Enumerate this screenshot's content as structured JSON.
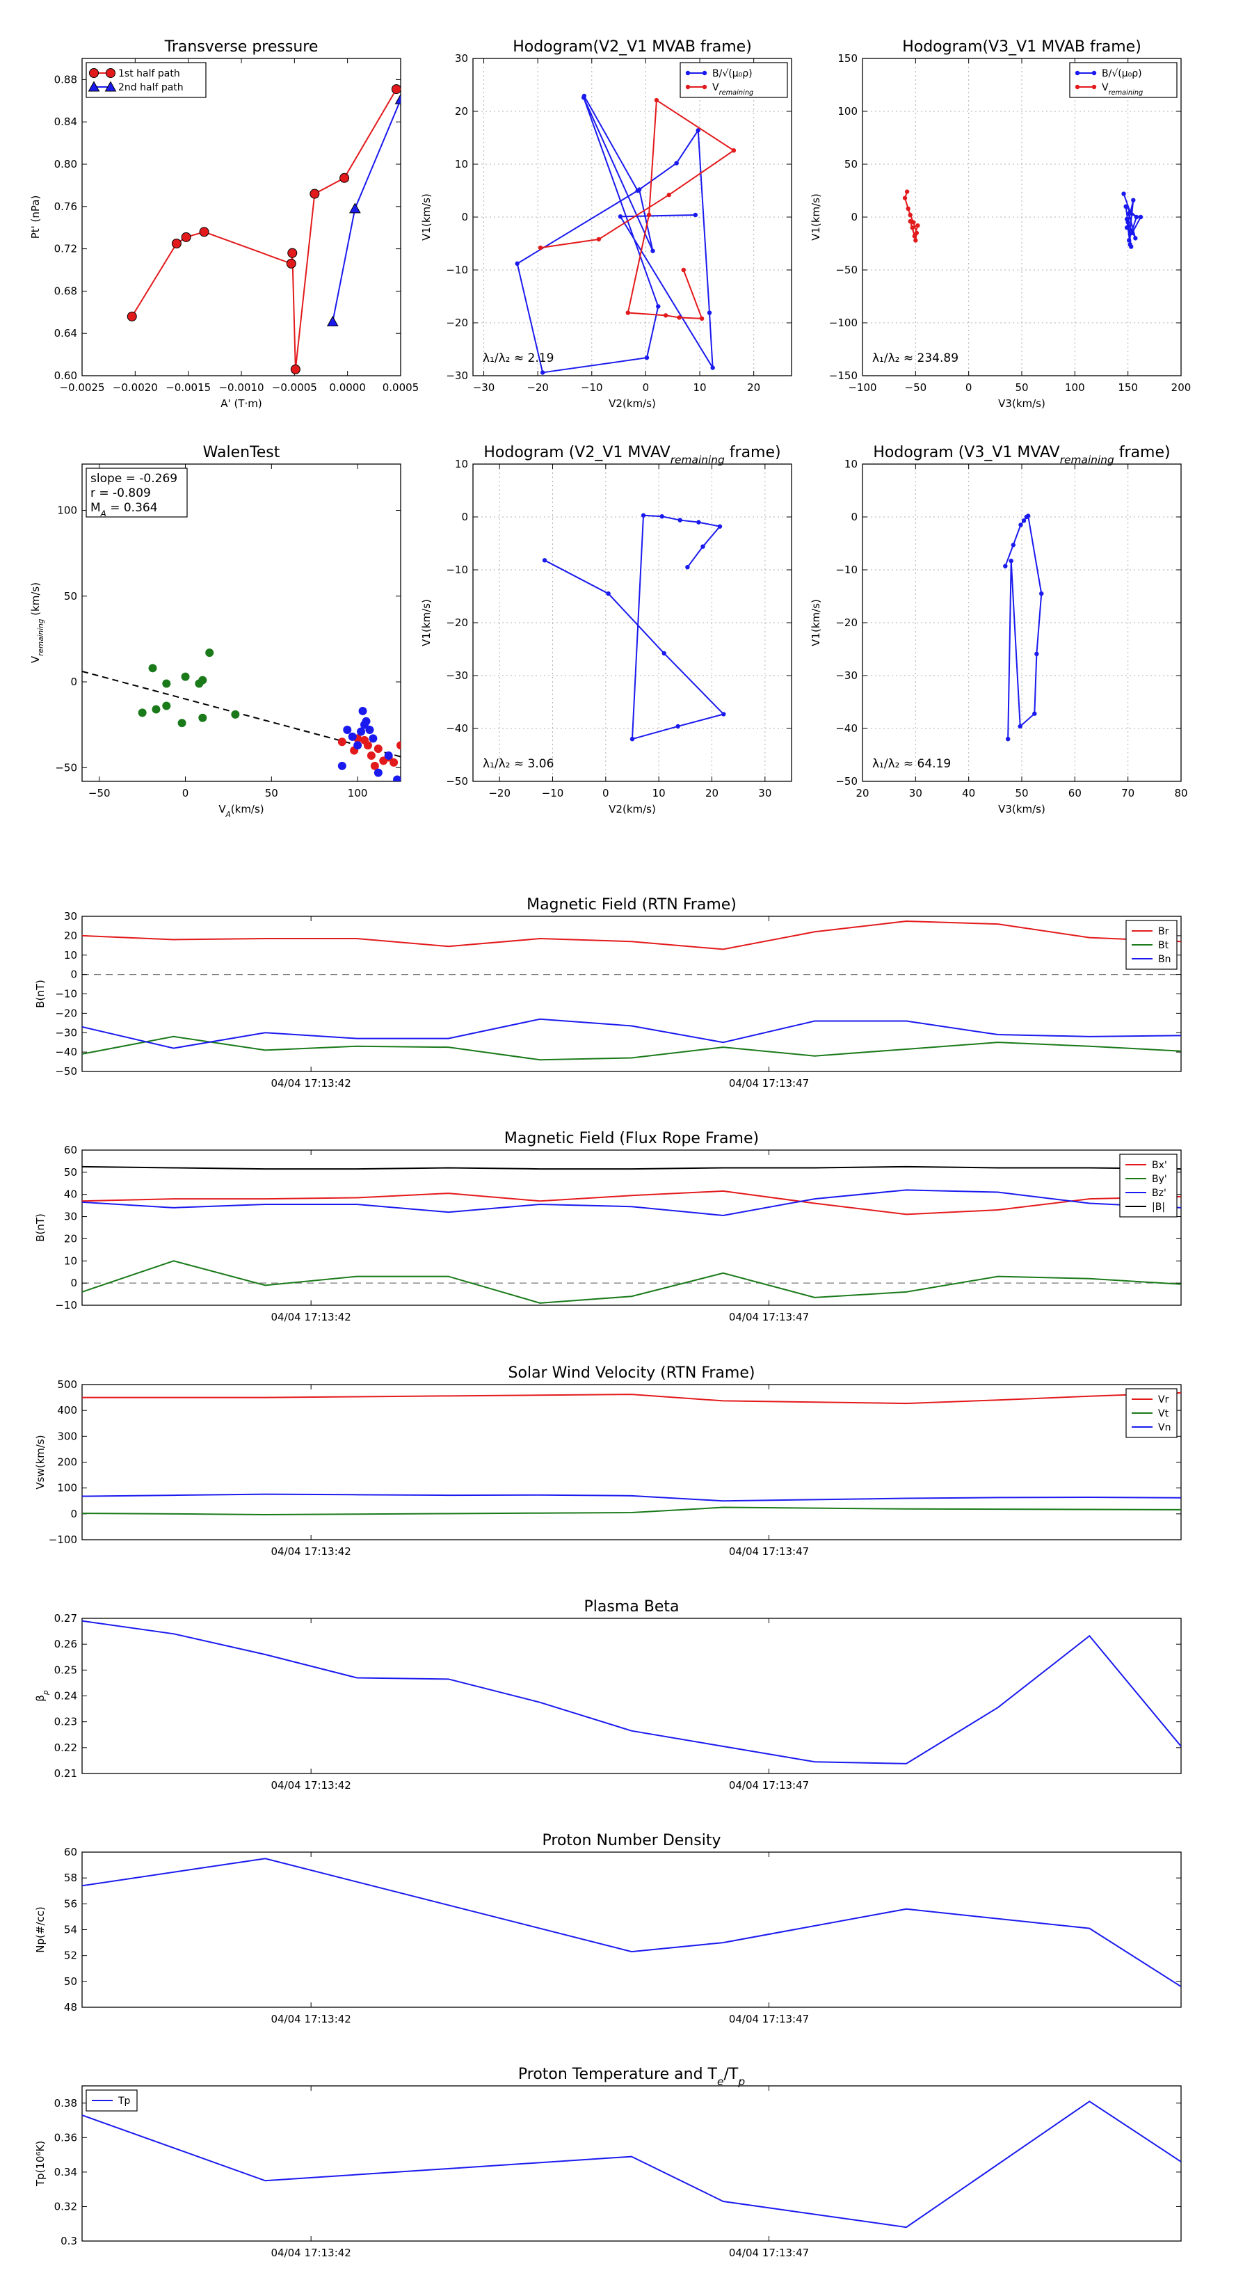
{
  "colors": {
    "red": "#e31a1c",
    "blue": "#1a1aef",
    "green": "#1a7a1a",
    "black": "#000000",
    "grid": "#b0b0b0"
  },
  "chart_data": [
    {
      "id": "transverse-pressure",
      "type": "line",
      "title": "Transverse pressure",
      "xlabel": "A' (T·m)",
      "ylabel": "Pt' (nPa)",
      "xlim": [
        -0.0025,
        0.0005
      ],
      "ylim": [
        0.6,
        0.9
      ],
      "xticks": [
        -0.0025,
        -0.002,
        -0.0015,
        -0.001,
        -0.0005,
        0.0,
        0.0005
      ],
      "xtick_labels": [
        "−0.0025",
        "−0.0020",
        "−0.0015",
        "−0.0010",
        "−0.0005",
        "0.0000",
        "0.0005"
      ],
      "yticks": [
        0.6,
        0.64,
        0.68,
        0.72,
        0.76,
        0.8,
        0.84,
        0.88
      ],
      "ytick_labels": [
        "0.60",
        "0.64",
        "0.68",
        "0.72",
        "0.76",
        "0.80",
        "0.84",
        "0.88"
      ],
      "legend": "top-left",
      "series": [
        {
          "name": "1st half path",
          "color": "red",
          "marker": "circle",
          "x": [
            0.00046,
            -3e-05,
            -0.00031,
            -0.00049,
            -0.00052,
            -0.00053,
            -0.00135,
            -0.00152,
            -0.00161,
            -0.00203
          ],
          "y": [
            0.871,
            0.787,
            0.772,
            0.606,
            0.716,
            0.706,
            0.736,
            0.731,
            0.725,
            0.656
          ]
        },
        {
          "name": "2nd half path",
          "color": "blue",
          "marker": "triangle",
          "x": [
            -0.00014,
            7e-05,
            0.0005
          ],
          "y": [
            0.651,
            0.758,
            0.861
          ]
        }
      ]
    },
    {
      "id": "hodogram-v2v1-mvab",
      "type": "line",
      "title": "Hodogram(V2_V1 MVAB frame)",
      "xlabel": "V2(km/s)",
      "ylabel": "V1(km/s)",
      "xlim": [
        -32,
        27
      ],
      "ylim": [
        -30,
        30
      ],
      "xticks": [
        -30,
        -20,
        -10,
        0,
        10,
        20
      ],
      "yticks": [
        -30,
        -20,
        -10,
        0,
        10,
        20,
        30
      ],
      "grid": true,
      "legend": "top-right",
      "annotation": "λ₁/λ₂ ≈ 2.19",
      "series": [
        {
          "name": "B/√(μ₀ρ)",
          "color": "blue",
          "marker": "point",
          "x": [
            9.2,
            -4.7,
            12.4,
            11.8,
            9.7,
            5.7,
            -1.2,
            1.3,
            -11.5,
            2.3,
            0.2,
            -19.1,
            -23.8,
            -1.5,
            -11.4
          ],
          "y": [
            0.4,
            0.1,
            -28.5,
            -18.1,
            16.4,
            10.2,
            5.2,
            -6.4,
            22.6,
            -16.9,
            -26.6,
            -29.4,
            -8.8,
            5.0,
            22.9
          ]
        },
        {
          "name": "V_remaining",
          "color": "red",
          "marker": "point",
          "x": [
            7.0,
            10.4,
            6.2,
            3.7,
            -3.3,
            0.6,
            2.0,
            16.3,
            4.3,
            -8.7,
            -19.5
          ],
          "y": [
            -10.0,
            -19.2,
            -19.0,
            -18.6,
            -18.1,
            0.4,
            22.1,
            12.6,
            4.2,
            -4.2,
            -5.8
          ]
        }
      ]
    },
    {
      "id": "hodogram-v3v1-mvab",
      "type": "line",
      "title": "Hodogram(V3_V1 MVAB frame)",
      "xlabel": "V3(km/s)",
      "ylabel": "V1(km/s)",
      "xlim": [
        -100,
        200
      ],
      "ylim": [
        -150,
        150
      ],
      "xticks": [
        -100,
        -50,
        0,
        50,
        100,
        150,
        200
      ],
      "yticks": [
        -150,
        -100,
        -50,
        0,
        50,
        100,
        150
      ],
      "grid": true,
      "legend": "top-right",
      "annotation": "λ₁/λ₂ ≈ 234.89",
      "series": [
        {
          "name": "B/√(μ₀ρ)",
          "color": "blue",
          "marker": "point",
          "x": [
            146,
            152,
            149,
            155,
            151,
            158,
            148,
            153,
            150,
            157,
            151,
            162,
            154,
            149,
            152
          ],
          "y": [
            22,
            5,
            -10,
            16,
            -22,
            0,
            10,
            -28,
            -5,
            -20,
            3,
            0,
            -15,
            -2,
            -26
          ]
        },
        {
          "name": "V_remaining",
          "color": "red",
          "marker": "point",
          "x": [
            -58,
            -60,
            -57,
            -55,
            -52,
            -49,
            -50,
            -53,
            -48,
            -51,
            -55
          ],
          "y": [
            24,
            18,
            8,
            2,
            -5,
            -15,
            -22,
            -10,
            -8,
            -18,
            -4
          ]
        }
      ]
    },
    {
      "id": "walen-test",
      "type": "scatter",
      "title": "WalenTest",
      "xlabel": "V_A(km/s)",
      "ylabel": "V_remaining (km/s)",
      "xlim": [
        -60,
        125
      ],
      "ylim": [
        -58,
        127
      ],
      "xticks": [
        -50,
        0,
        50,
        100
      ],
      "yticks": [
        -50,
        0,
        50,
        100
      ],
      "stats": [
        "slope = -0.269",
        "r = -0.809",
        "M_A = 0.364"
      ],
      "fit_line": {
        "slope": -0.269,
        "intercept": -10.0,
        "x": [
          -60,
          125
        ]
      },
      "series": [
        {
          "name": "green",
          "color": "green",
          "x": [
            -19,
            -25,
            -11,
            0,
            8,
            10,
            14,
            -17,
            -11,
            -2,
            10,
            29
          ],
          "y": [
            8,
            -18,
            -1,
            3,
            -1,
            1,
            17,
            -16,
            -14,
            -24,
            -21,
            -19
          ]
        },
        {
          "name": "red",
          "color": "red",
          "x": [
            91,
            98,
            104,
            106,
            108,
            112,
            115,
            118,
            121,
            125,
            100,
            110
          ],
          "y": [
            -35,
            -40,
            -34,
            -37,
            -43,
            -39,
            -46,
            -44,
            -47,
            -37,
            -33,
            -49
          ]
        },
        {
          "name": "blue",
          "color": "blue",
          "x": [
            91,
            94,
            97,
            100,
            103,
            105,
            107,
            109,
            112,
            118,
            123,
            102,
            104
          ],
          "y": [
            -49,
            -28,
            -32,
            -37,
            -17,
            -23,
            -28,
            -33,
            -53,
            -43,
            -57,
            -29,
            -25
          ]
        }
      ]
    },
    {
      "id": "hodogram-v2v1-mvav",
      "type": "line",
      "title": "Hodogram (V2_V1 MVAV_remaining frame)",
      "xlabel": "V2(km/s)",
      "ylabel": "V1(km/s)",
      "xlim": [
        -25,
        35
      ],
      "ylim": [
        -50,
        10
      ],
      "xticks": [
        -20,
        -10,
        0,
        10,
        20,
        30
      ],
      "yticks": [
        -50,
        -40,
        -30,
        -20,
        -10,
        0,
        10
      ],
      "grid": true,
      "annotation": "λ₁/λ₂ ≈ 3.06",
      "series": [
        {
          "name": "path",
          "color": "blue",
          "marker": "point",
          "x": [
            15.4,
            18.3,
            21.5,
            17.5,
            14.0,
            10.6,
            7.1,
            5.0,
            13.6,
            22.2,
            11.0,
            0.5,
            -11.5
          ],
          "y": [
            -9.5,
            -5.6,
            -1.8,
            -1.0,
            -0.6,
            0.1,
            0.3,
            -42.0,
            -39.6,
            -37.3,
            -25.8,
            -14.5,
            -8.2
          ]
        }
      ]
    },
    {
      "id": "hodogram-v3v1-mvav",
      "type": "line",
      "title": "Hodogram (V3_V1 MVAV_remaining frame)",
      "xlabel": "V3(km/s)",
      "ylabel": "V1(km/s)",
      "xlim": [
        20,
        80
      ],
      "ylim": [
        -50,
        10
      ],
      "xticks": [
        20,
        30,
        40,
        50,
        60,
        70,
        80
      ],
      "yticks": [
        -50,
        -40,
        -30,
        -20,
        -10,
        0,
        10
      ],
      "grid": true,
      "annotation": "λ₁/λ₂ ≈ 64.19",
      "series": [
        {
          "name": "path",
          "color": "blue",
          "marker": "point",
          "x": [
            46.9,
            48.4,
            49.8,
            50.4,
            50.9,
            51.2,
            53.7,
            52.8,
            52.4,
            49.7,
            48.0,
            47.4
          ],
          "y": [
            -9.3,
            -5.3,
            -1.5,
            -0.7,
            0.0,
            0.2,
            -14.5,
            -25.9,
            -37.2,
            -39.6,
            -8.3,
            -42.0
          ]
        }
      ]
    },
    {
      "id": "magnetic-field-rtn",
      "type": "line",
      "title": "Magnetic Field (RTN Frame)",
      "ylabel": "B(nT)",
      "ylim": [
        -50,
        30
      ],
      "yticks": [
        -50,
        -40,
        -30,
        -20,
        -10,
        0,
        10,
        20,
        30
      ],
      "dashed_zero": true,
      "legend": "top-right",
      "time_ticks": [
        "04/04 17:13:42",
        "04/04 17:13:47"
      ],
      "time_tick_positions": [
        2.5,
        7.5
      ],
      "x": [
        0,
        1,
        2,
        3,
        4,
        5,
        6,
        7,
        8,
        9,
        10,
        11,
        12
      ],
      "series": [
        {
          "name": "Br",
          "color": "red",
          "values": [
            20,
            18,
            18.5,
            18.5,
            14.5,
            18.5,
            17,
            13,
            22,
            27.5,
            26,
            19,
            17
          ]
        },
        {
          "name": "Bt",
          "color": "green",
          "values": [
            -41,
            -32,
            -39,
            -37,
            -37.5,
            -44,
            -43,
            -37.5,
            -42,
            -38.5,
            -35,
            -37,
            -39.5
          ]
        },
        {
          "name": "Bn",
          "color": "blue",
          "values": [
            -27,
            -38,
            -30,
            -33,
            -33,
            -23,
            -26.5,
            -35,
            -24,
            -24,
            -31,
            -32,
            -31.5
          ]
        }
      ]
    },
    {
      "id": "magnetic-field-flux-rope",
      "type": "line",
      "title": "Magnetic Field (Flux Rope Frame)",
      "ylabel": "B(nT)",
      "ylim": [
        -10,
        60
      ],
      "yticks": [
        -10,
        0,
        10,
        20,
        30,
        40,
        50,
        60
      ],
      "dashed_zero": true,
      "legend": "top-right",
      "time_ticks": [
        "04/04 17:13:42",
        "04/04 17:13:47"
      ],
      "time_tick_positions": [
        2.5,
        7.5
      ],
      "x": [
        0,
        1,
        2,
        3,
        4,
        5,
        6,
        7,
        8,
        9,
        10,
        11,
        12
      ],
      "series": [
        {
          "name": "Bx'",
          "color": "red",
          "values": [
            37,
            38,
            38,
            38.5,
            40.5,
            37,
            39.5,
            41.5,
            36,
            31,
            33,
            38,
            39
          ]
        },
        {
          "name": "By'",
          "color": "green",
          "values": [
            -4,
            10,
            -1,
            3,
            3,
            -9,
            -6,
            4.5,
            -6.5,
            -4,
            3,
            2,
            -0.5
          ]
        },
        {
          "name": "Bz'",
          "color": "blue",
          "values": [
            36.5,
            34,
            35.5,
            35.5,
            32,
            35.5,
            34.5,
            30.5,
            38,
            42,
            41,
            36,
            34
          ]
        },
        {
          "name": "|B|",
          "color": "black",
          "values": [
            52.5,
            52,
            51.5,
            51.5,
            52,
            51.5,
            51.5,
            52,
            52,
            52.5,
            52,
            52,
            51.5
          ]
        }
      ]
    },
    {
      "id": "solar-wind-velocity",
      "type": "line",
      "title": "Solar Wind Velocity (RTN Frame)",
      "ylabel": "Vsw(km/s)",
      "ylim": [
        -100,
        500
      ],
      "yticks": [
        -100,
        0,
        100,
        200,
        300,
        400,
        500
      ],
      "legend": "top-right",
      "time_ticks": [
        "04/04 17:13:42",
        "04/04 17:13:47"
      ],
      "time_tick_positions": [
        2.5,
        7.5
      ],
      "x": [
        0,
        1,
        2,
        3,
        4,
        5,
        6,
        7,
        8,
        9,
        10,
        11,
        12
      ],
      "series": [
        {
          "name": "Vr",
          "color": "red",
          "values": [
            450,
            450,
            450,
            453,
            456,
            459,
            462,
            437,
            432,
            427,
            440,
            455,
            468
          ]
        },
        {
          "name": "Vt",
          "color": "green",
          "values": [
            2,
            0,
            -3,
            -1,
            1,
            3,
            5,
            25,
            22,
            19,
            18,
            17,
            16
          ]
        },
        {
          "name": "Vn",
          "color": "blue",
          "values": [
            68,
            72,
            76,
            74,
            72,
            73,
            70,
            50,
            55,
            60,
            63,
            64,
            62
          ]
        }
      ]
    },
    {
      "id": "plasma-beta",
      "type": "line",
      "title": "Plasma Beta",
      "ylabel": "β_p",
      "ylim": [
        0.21,
        0.27
      ],
      "yticks": [
        0.21,
        0.22,
        0.23,
        0.24,
        0.25,
        0.26,
        0.27
      ],
      "time_ticks": [
        "04/04 17:13:42",
        "04/04 17:13:47"
      ],
      "time_tick_positions": [
        2.5,
        7.5
      ],
      "x": [
        0,
        1,
        2,
        3,
        4,
        5,
        6,
        7,
        8,
        9,
        10,
        11,
        12
      ],
      "series": [
        {
          "name": "beta",
          "color": "blue",
          "values": [
            0.269,
            0.264,
            0.256,
            0.247,
            0.2465,
            0.2375,
            0.2265,
            0.2205,
            0.2145,
            0.2138,
            0.2355,
            0.2632,
            0.2205
          ]
        }
      ]
    },
    {
      "id": "proton-number-density",
      "type": "line",
      "title": "Proton Number Density",
      "ylabel": "Np(#/cc)",
      "ylim": [
        48,
        60
      ],
      "yticks": [
        48,
        50,
        52,
        54,
        56,
        58,
        60
      ],
      "time_ticks": [
        "04/04 17:13:42",
        "04/04 17:13:47"
      ],
      "time_tick_positions": [
        2.5,
        7.5
      ],
      "x": [
        0,
        2,
        6,
        7,
        9,
        11,
        12
      ],
      "series": [
        {
          "name": "Np",
          "color": "blue",
          "values": [
            57.4,
            59.5,
            52.3,
            53.0,
            55.6,
            54.1,
            49.6
          ]
        }
      ]
    },
    {
      "id": "proton-temperature",
      "type": "line",
      "title": "Proton Temperature and T_e/T_p",
      "ylabel": "Tp(10⁶K)",
      "ylim": [
        0.3,
        0.39
      ],
      "yticks": [
        0.3,
        0.32,
        0.34,
        0.36,
        0.38
      ],
      "legend": "top-left",
      "time_ticks": [
        "04/04 17:13:42",
        "04/04 17:13:47"
      ],
      "time_tick_positions": [
        2.5,
        7.5
      ],
      "x": [
        0,
        2,
        6,
        7,
        9,
        11,
        12
      ],
      "series": [
        {
          "name": "Tp",
          "color": "blue",
          "values": [
            0.373,
            0.335,
            0.349,
            0.323,
            0.308,
            0.381,
            0.346
          ]
        }
      ]
    }
  ]
}
